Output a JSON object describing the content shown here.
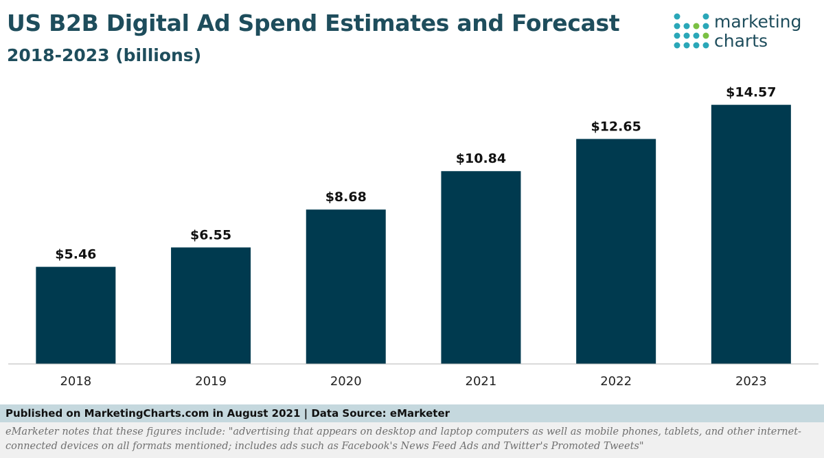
{
  "header": {
    "title": "US B2B Digital Ad Spend Estimates and Forecast",
    "subtitle": "2018-2023 (billions)"
  },
  "logo": {
    "line1": "marketing",
    "line2": "charts",
    "colors": [
      "#2aa7b8",
      "#7ac043",
      "#1e4d5c"
    ]
  },
  "chart_data": {
    "type": "bar",
    "categories": [
      "2018",
      "2019",
      "2020",
      "2021",
      "2022",
      "2023"
    ],
    "values": [
      5.46,
      6.55,
      8.68,
      10.84,
      12.65,
      14.57
    ],
    "data_labels": [
      "$5.46",
      "$6.55",
      "$8.68",
      "$10.84",
      "$12.65",
      "$14.57"
    ],
    "title": "US B2B Digital Ad Spend Estimates and Forecast",
    "subtitle": "2018-2023 (billions)",
    "xlabel": "",
    "ylabel": "",
    "ylim": [
      0,
      15
    ],
    "grid": false,
    "legend": "none",
    "bar_color": "#003a4f"
  },
  "footer": {
    "source": "Published on MarketingCharts.com in August 2021 | Data Source: eMarketer",
    "note": "eMarketer notes that these figures include: \"advertising that appears on desktop and laptop computers as well as mobile phones, tablets, and other internet-connected devices on all formats mentioned; includes ads such as Facebook's News Feed Ads and Twitter's Promoted Tweets\""
  }
}
